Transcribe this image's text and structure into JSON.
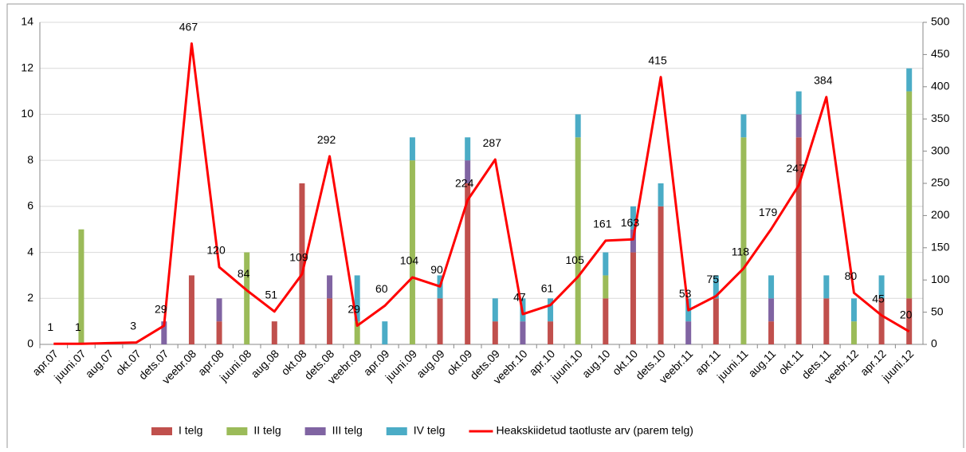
{
  "chart_data": {
    "type": "bar-line",
    "categories": [
      "apr.07",
      "juuni.07",
      "aug.07",
      "okt.07",
      "dets.07",
      "veebr.08",
      "apr.08",
      "juuni.08",
      "aug.08",
      "okt.08",
      "dets.08",
      "veebr.09",
      "apr.09",
      "juuni.09",
      "aug.09",
      "okt.09",
      "dets.09",
      "veebr.10",
      "apr.10",
      "juuni.10",
      "aug.10",
      "okt.10",
      "dets.10",
      "veebr.11",
      "apr.11",
      "juuni.11",
      "aug.11",
      "okt.11",
      "dets.11",
      "veebr.12",
      "apr.12",
      "juuni.12"
    ],
    "series": [
      {
        "name": "I telg",
        "color": "#c0504d",
        "values": [
          0,
          0,
          0,
          0,
          0,
          3,
          1,
          0,
          1,
          7,
          2,
          0,
          0,
          0,
          2,
          7,
          1,
          0,
          1,
          0,
          2,
          4,
          6,
          0,
          2,
          0,
          1,
          9,
          2,
          0,
          2,
          2
        ]
      },
      {
        "name": "II telg",
        "color": "#9bbb59",
        "values": [
          0,
          5,
          0,
          0,
          0,
          0,
          0,
          4,
          0,
          0,
          0,
          1,
          0,
          8,
          0,
          0,
          0,
          0,
          0,
          9,
          1,
          0,
          0,
          0,
          0,
          9,
          0,
          0,
          0,
          1,
          0,
          9
        ]
      },
      {
        "name": "III telg",
        "color": "#8064a2",
        "values": [
          0,
          0,
          0,
          0,
          1,
          0,
          1,
          0,
          0,
          0,
          1,
          0,
          0,
          0,
          0,
          1,
          0,
          1,
          0,
          0,
          0,
          1,
          0,
          1,
          0,
          0,
          1,
          1,
          0,
          0,
          0,
          0
        ]
      },
      {
        "name": "IV telg",
        "color": "#4bacc6",
        "values": [
          0,
          0,
          0,
          0,
          0,
          0,
          0,
          0,
          0,
          0,
          0,
          2,
          1,
          1,
          1,
          1,
          1,
          1,
          1,
          1,
          1,
          1,
          1,
          1,
          1,
          1,
          1,
          1,
          1,
          1,
          1,
          1
        ]
      },
      {
        "name": "Heakskiidetud taotluste arv (parem telg)",
        "color": "#ff0000",
        "axis": "y2",
        "values": [
          1,
          1,
          2,
          3,
          29,
          467,
          120,
          84,
          51,
          109,
          292,
          29,
          60,
          104,
          90,
          224,
          287,
          47,
          61,
          105,
          161,
          163,
          415,
          53,
          75,
          118,
          179,
          247,
          384,
          80,
          45,
          20
        ],
        "value_labels": [
          "1",
          "1",
          null,
          "3",
          "29",
          "467",
          "120",
          "84",
          "51",
          "109",
          "292",
          "29",
          "60",
          "104",
          "90",
          "224",
          "287",
          "47",
          "61",
          "105",
          "161",
          "163",
          "415",
          "53",
          "75",
          "118",
          "179",
          "247",
          "384",
          "80",
          "45",
          "20"
        ]
      }
    ],
    "ylim": [
      0,
      14
    ],
    "yticks": [
      0,
      2,
      4,
      6,
      8,
      10,
      12,
      14
    ],
    "y2lim": [
      0,
      500
    ],
    "y2ticks": [
      0,
      50,
      100,
      150,
      200,
      250,
      300,
      350,
      400,
      450,
      500
    ],
    "grid": true,
    "legend": "bottom"
  }
}
